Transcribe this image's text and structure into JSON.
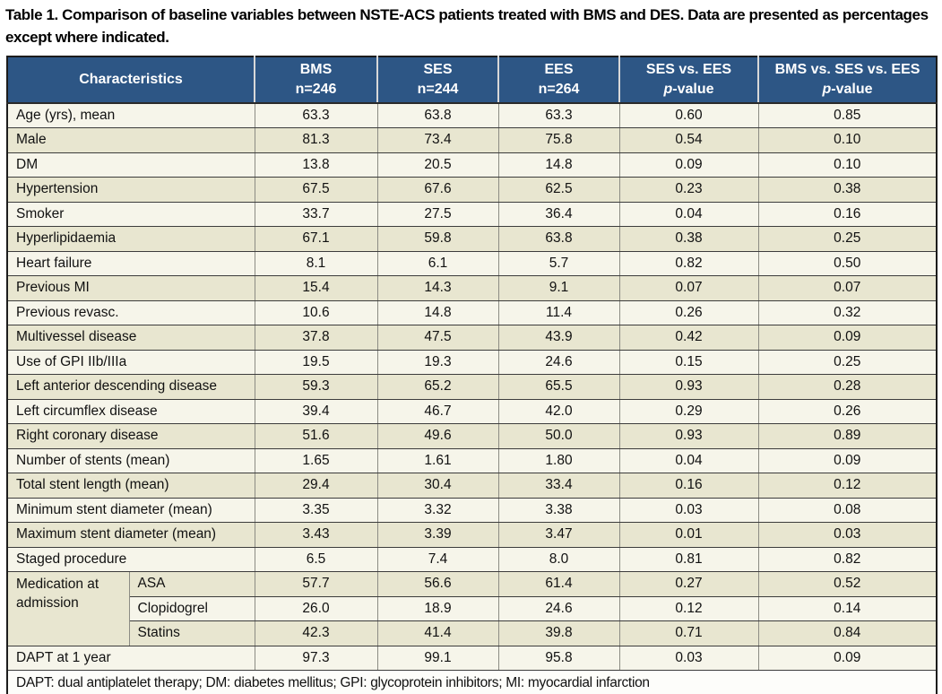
{
  "caption": "Table 1. Comparison of baseline variables between NSTE-ACS patients treated with BMS and DES. Data are presented as percentages except where indicated.",
  "colors": {
    "header_bg": "#2d5685",
    "header_text": "#ffffff",
    "row_cream": "#f6f5ea",
    "row_beige": "#e8e6d0",
    "grid_dark": "#3c3c3c",
    "grid_gray": "#8c8c84"
  },
  "table": {
    "columns": [
      {
        "line1": "Characteristics"
      },
      {
        "line1": "BMS",
        "line2": "n=246"
      },
      {
        "line1": "SES",
        "line2": "n=244"
      },
      {
        "line1": "EES",
        "line2": "n=264"
      },
      {
        "line1": "SES vs. EES",
        "line2": "p-value",
        "p_italic": true
      },
      {
        "line1": "BMS vs. SES vs. EES",
        "line2": "p-value",
        "p_italic": true
      }
    ],
    "rows": [
      {
        "label": "Age (yrs), mean",
        "values": [
          "63.3",
          "63.8",
          "63.3",
          "0.60",
          "0.85"
        ]
      },
      {
        "label": "Male",
        "values": [
          "81.3",
          "73.4",
          "75.8",
          "0.54",
          "0.10"
        ]
      },
      {
        "label": "DM",
        "values": [
          "13.8",
          "20.5",
          "14.8",
          "0.09",
          "0.10"
        ]
      },
      {
        "label": "Hypertension",
        "values": [
          "67.5",
          "67.6",
          "62.5",
          "0.23",
          "0.38"
        ]
      },
      {
        "label": "Smoker",
        "values": [
          "33.7",
          "27.5",
          "36.4",
          "0.04",
          "0.16"
        ]
      },
      {
        "label": "Hyperlipidaemia",
        "values": [
          "67.1",
          "59.8",
          "63.8",
          "0.38",
          "0.25"
        ]
      },
      {
        "label": "Heart failure",
        "values": [
          "8.1",
          "6.1",
          "5.7",
          "0.82",
          "0.50"
        ]
      },
      {
        "label": "Previous MI",
        "values": [
          "15.4",
          "14.3",
          "9.1",
          "0.07",
          "0.07"
        ]
      },
      {
        "label": "Previous revasc.",
        "values": [
          "10.6",
          "14.8",
          "11.4",
          "0.26",
          "0.32"
        ]
      },
      {
        "label": "Multivessel disease",
        "values": [
          "37.8",
          "47.5",
          "43.9",
          "0.42",
          "0.09"
        ]
      },
      {
        "label": "Use of GPI IIb/IIIa",
        "values": [
          "19.5",
          "19.3",
          "24.6",
          "0.15",
          "0.25"
        ]
      },
      {
        "label": "Left anterior descending disease",
        "values": [
          "59.3",
          "65.2",
          "65.5",
          "0.93",
          "0.28"
        ]
      },
      {
        "label": "Left circumflex disease",
        "values": [
          "39.4",
          "46.7",
          "42.0",
          "0.29",
          "0.26"
        ]
      },
      {
        "label": "Right coronary disease",
        "values": [
          "51.6",
          "49.6",
          "50.0",
          "0.93",
          "0.89"
        ]
      },
      {
        "label": "Number of stents (mean)",
        "values": [
          "1.65",
          "1.61",
          "1.80",
          "0.04",
          "0.09"
        ]
      },
      {
        "label": "Total stent length (mean)",
        "values": [
          "29.4",
          "30.4",
          "33.4",
          "0.16",
          "0.12"
        ]
      },
      {
        "label": "Minimum stent diameter (mean)",
        "values": [
          "3.35",
          "3.32",
          "3.38",
          "0.03",
          "0.08"
        ]
      },
      {
        "label": "Maximum stent diameter (mean)",
        "values": [
          "3.43",
          "3.39",
          "3.47",
          "0.01",
          "0.03"
        ]
      },
      {
        "label": "Staged procedure",
        "values": [
          "6.5",
          "7.4",
          "8.0",
          "0.81",
          "0.82"
        ]
      },
      {
        "group": "Medication at admission",
        "group_rowspan": 3,
        "label": "ASA",
        "values": [
          "57.7",
          "56.6",
          "61.4",
          "0.27",
          "0.52"
        ]
      },
      {
        "in_group": true,
        "label": "Clopidogrel",
        "values": [
          "26.0",
          "18.9",
          "24.6",
          "0.12",
          "0.14"
        ]
      },
      {
        "in_group": true,
        "label": "Statins",
        "values": [
          "42.3",
          "41.4",
          "39.8",
          "0.71",
          "0.84"
        ]
      },
      {
        "label": "DAPT at 1 year",
        "values": [
          "97.3",
          "99.1",
          "95.8",
          "0.03",
          "0.09"
        ]
      }
    ],
    "footnote": "DAPT: dual antiplatelet therapy; DM: diabetes mellitus; GPI: glycoprotein inhibitors; MI: myocardial infarction"
  }
}
